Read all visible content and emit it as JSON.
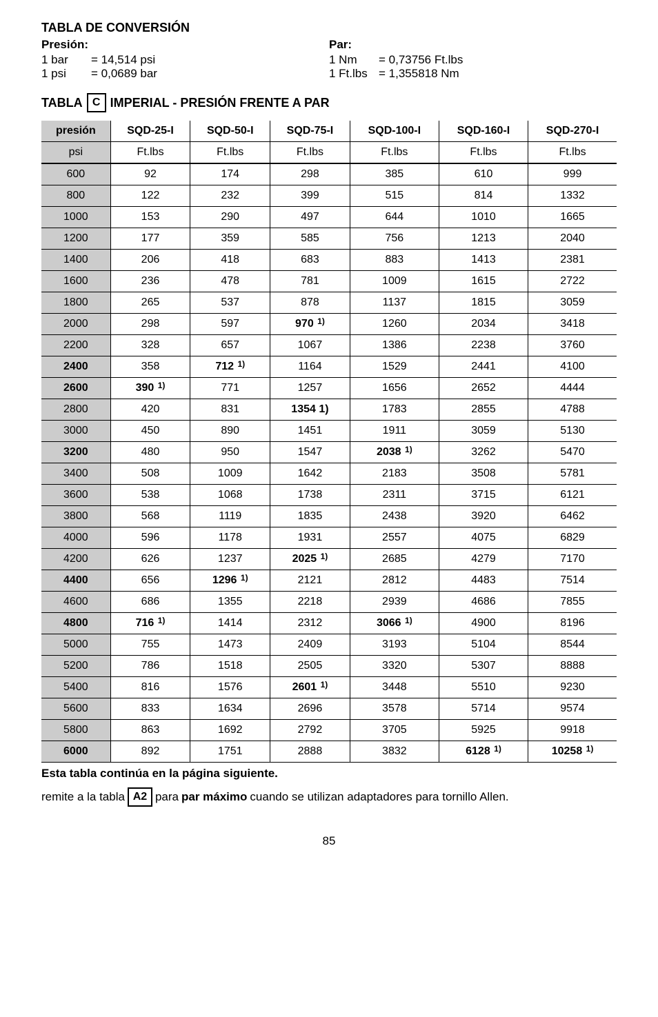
{
  "title": "TABLA DE CONVERSIÓN",
  "presion": {
    "label": "Presión:",
    "lines": [
      {
        "u": "1 bar",
        "v": "=  14,514 psi"
      },
      {
        "u": "1 psi",
        "v": "=  0,0689 bar"
      }
    ]
  },
  "par": {
    "label": "Par:",
    "lines": [
      {
        "u": "1 Nm",
        "v": "=  0,73756 Ft.lbs"
      },
      {
        "u": "1 Ft.lbs",
        "v": "=  1,355818 Nm"
      }
    ]
  },
  "tableHeading": {
    "pre": "TABLA",
    "box": "C",
    "post": "IMPERIAL - PRESIÓN FRENTE A PAR"
  },
  "columns": [
    "presión",
    "SQD-25-I",
    "SQD-50-I",
    "SQD-75-I",
    "SQD-100-I",
    "SQD-160-I",
    "SQD-270-I"
  ],
  "units": [
    "psi",
    "Ft.lbs",
    "Ft.lbs",
    "Ft.lbs",
    "Ft.lbs",
    "Ft.lbs",
    "Ft.lbs"
  ],
  "rows": [
    {
      "psi": "600",
      "psi_b": false,
      "c": [
        {
          "v": "92"
        },
        {
          "v": "174"
        },
        {
          "v": "298"
        },
        {
          "v": "385"
        },
        {
          "v": "610"
        },
        {
          "v": "999"
        }
      ]
    },
    {
      "psi": "800",
      "psi_b": false,
      "c": [
        {
          "v": "122"
        },
        {
          "v": "232"
        },
        {
          "v": "399"
        },
        {
          "v": "515"
        },
        {
          "v": "814"
        },
        {
          "v": "1332"
        }
      ]
    },
    {
      "psi": "1000",
      "psi_b": false,
      "c": [
        {
          "v": "153"
        },
        {
          "v": "290"
        },
        {
          "v": "497"
        },
        {
          "v": "644"
        },
        {
          "v": "1010"
        },
        {
          "v": "1665"
        }
      ]
    },
    {
      "psi": "1200",
      "psi_b": false,
      "c": [
        {
          "v": "177"
        },
        {
          "v": "359"
        },
        {
          "v": "585"
        },
        {
          "v": "756"
        },
        {
          "v": "1213"
        },
        {
          "v": "2040"
        }
      ]
    },
    {
      "psi": "1400",
      "psi_b": false,
      "c": [
        {
          "v": "206"
        },
        {
          "v": "418"
        },
        {
          "v": "683"
        },
        {
          "v": "883"
        },
        {
          "v": "1413"
        },
        {
          "v": "2381"
        }
      ]
    },
    {
      "psi": "1600",
      "psi_b": false,
      "c": [
        {
          "v": "236"
        },
        {
          "v": "478"
        },
        {
          "v": "781"
        },
        {
          "v": "1009"
        },
        {
          "v": "1615"
        },
        {
          "v": "2722"
        }
      ]
    },
    {
      "psi": "1800",
      "psi_b": false,
      "c": [
        {
          "v": "265"
        },
        {
          "v": "537"
        },
        {
          "v": "878"
        },
        {
          "v": "1137"
        },
        {
          "v": "1815"
        },
        {
          "v": "3059"
        }
      ]
    },
    {
      "psi": "2000",
      "psi_b": false,
      "c": [
        {
          "v": "298"
        },
        {
          "v": "597"
        },
        {
          "v": "970",
          "s": true
        },
        {
          "v": "1260"
        },
        {
          "v": "2034"
        },
        {
          "v": "3418"
        }
      ]
    },
    {
      "psi": "2200",
      "psi_b": false,
      "c": [
        {
          "v": "328"
        },
        {
          "v": "657"
        },
        {
          "v": "1067"
        },
        {
          "v": "1386"
        },
        {
          "v": "2238"
        },
        {
          "v": "3760"
        }
      ]
    },
    {
      "psi": "2400",
      "psi_b": true,
      "c": [
        {
          "v": "358"
        },
        {
          "v": "712",
          "s": true
        },
        {
          "v": "1164"
        },
        {
          "v": "1529"
        },
        {
          "v": "2441"
        },
        {
          "v": "4100"
        }
      ]
    },
    {
      "psi": "2600",
      "psi_b": true,
      "c": [
        {
          "v": "390",
          "s": true
        },
        {
          "v": "771"
        },
        {
          "v": "1257"
        },
        {
          "v": "1656"
        },
        {
          "v": "2652"
        },
        {
          "v": "4444"
        }
      ]
    },
    {
      "psi": "2800",
      "psi_b": false,
      "c": [
        {
          "v": "420"
        },
        {
          "v": "831"
        },
        {
          "v": "1354 1)",
          "b": true
        },
        {
          "v": "1783"
        },
        {
          "v": "2855"
        },
        {
          "v": "4788"
        }
      ]
    },
    {
      "psi": "3000",
      "psi_b": false,
      "c": [
        {
          "v": "450"
        },
        {
          "v": "890"
        },
        {
          "v": "1451"
        },
        {
          "v": "1911"
        },
        {
          "v": "3059"
        },
        {
          "v": "5130"
        }
      ]
    },
    {
      "psi": "3200",
      "psi_b": true,
      "c": [
        {
          "v": "480"
        },
        {
          "v": "950"
        },
        {
          "v": "1547"
        },
        {
          "v": "2038",
          "s": true
        },
        {
          "v": "3262"
        },
        {
          "v": "5470"
        }
      ]
    },
    {
      "psi": "3400",
      "psi_b": false,
      "c": [
        {
          "v": "508"
        },
        {
          "v": "1009"
        },
        {
          "v": "1642"
        },
        {
          "v": "2183"
        },
        {
          "v": "3508"
        },
        {
          "v": "5781"
        }
      ]
    },
    {
      "psi": "3600",
      "psi_b": false,
      "c": [
        {
          "v": "538"
        },
        {
          "v": "1068"
        },
        {
          "v": "1738"
        },
        {
          "v": "2311"
        },
        {
          "v": "3715"
        },
        {
          "v": "6121"
        }
      ]
    },
    {
      "psi": "3800",
      "psi_b": false,
      "c": [
        {
          "v": "568"
        },
        {
          "v": "1119"
        },
        {
          "v": "1835"
        },
        {
          "v": "2438"
        },
        {
          "v": "3920"
        },
        {
          "v": "6462"
        }
      ]
    },
    {
      "psi": "4000",
      "psi_b": false,
      "c": [
        {
          "v": "596"
        },
        {
          "v": "1178"
        },
        {
          "v": "1931"
        },
        {
          "v": "2557"
        },
        {
          "v": "4075"
        },
        {
          "v": "6829"
        }
      ]
    },
    {
      "psi": "4200",
      "psi_b": false,
      "c": [
        {
          "v": "626"
        },
        {
          "v": "1237"
        },
        {
          "v": "2025",
          "s": true
        },
        {
          "v": "2685"
        },
        {
          "v": "4279"
        },
        {
          "v": "7170"
        }
      ]
    },
    {
      "psi": "4400",
      "psi_b": true,
      "c": [
        {
          "v": "656"
        },
        {
          "v": "1296",
          "s": true
        },
        {
          "v": "2121"
        },
        {
          "v": "2812"
        },
        {
          "v": "4483"
        },
        {
          "v": "7514"
        }
      ]
    },
    {
      "psi": "4600",
      "psi_b": false,
      "c": [
        {
          "v": "686"
        },
        {
          "v": "1355"
        },
        {
          "v": "2218"
        },
        {
          "v": "2939"
        },
        {
          "v": "4686"
        },
        {
          "v": "7855"
        }
      ]
    },
    {
      "psi": "4800",
      "psi_b": true,
      "c": [
        {
          "v": "716",
          "s": true
        },
        {
          "v": "1414"
        },
        {
          "v": "2312"
        },
        {
          "v": "3066",
          "s": true
        },
        {
          "v": "4900"
        },
        {
          "v": "8196"
        }
      ]
    },
    {
      "psi": "5000",
      "psi_b": false,
      "c": [
        {
          "v": "755"
        },
        {
          "v": "1473"
        },
        {
          "v": "2409"
        },
        {
          "v": "3193"
        },
        {
          "v": "5104"
        },
        {
          "v": "8544"
        }
      ]
    },
    {
      "psi": "5200",
      "psi_b": false,
      "c": [
        {
          "v": "786"
        },
        {
          "v": "1518"
        },
        {
          "v": "2505"
        },
        {
          "v": "3320"
        },
        {
          "v": "5307"
        },
        {
          "v": "8888"
        }
      ]
    },
    {
      "psi": "5400",
      "psi_b": false,
      "c": [
        {
          "v": "816"
        },
        {
          "v": "1576"
        },
        {
          "v": "2601",
          "s": true
        },
        {
          "v": "3448"
        },
        {
          "v": "5510"
        },
        {
          "v": "9230"
        }
      ]
    },
    {
      "psi": "5600",
      "psi_b": false,
      "c": [
        {
          "v": "833"
        },
        {
          "v": "1634"
        },
        {
          "v": "2696"
        },
        {
          "v": "3578"
        },
        {
          "v": "5714"
        },
        {
          "v": "9574"
        }
      ]
    },
    {
      "psi": "5800",
      "psi_b": false,
      "c": [
        {
          "v": "863"
        },
        {
          "v": "1692"
        },
        {
          "v": "2792"
        },
        {
          "v": "3705"
        },
        {
          "v": "5925"
        },
        {
          "v": "9918"
        }
      ]
    },
    {
      "psi": "6000",
      "psi_b": true,
      "c": [
        {
          "v": "892"
        },
        {
          "v": "1751"
        },
        {
          "v": "2888"
        },
        {
          "v": "3832"
        },
        {
          "v": "6128",
          "s": true
        },
        {
          "v": "10258",
          "s": true
        }
      ]
    }
  ],
  "footnote_sup": "1)",
  "footerBold": "Esta tabla continúa en la página siguiente.",
  "footerLine": {
    "pre": "remite a la tabla",
    "box": "A2",
    "mid": "para",
    "bold": "par máximo",
    "post": "cuando se utilizan adaptadores para tornillo Allen."
  },
  "pageNum": "85"
}
